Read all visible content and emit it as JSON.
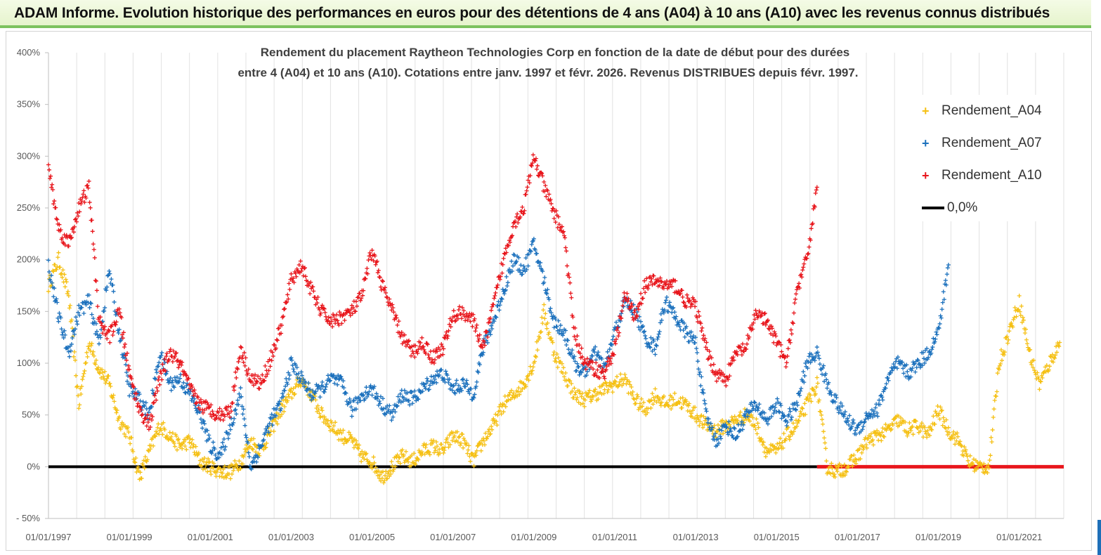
{
  "banner": {
    "title": "ADAM Informe. Evolution historique des performances en euros pour des détentions de 4 ans (A04) à 10 ans (A10) avec les revenus connus distribués"
  },
  "colors": {
    "A04": "#f5c014",
    "A07": "#1c71bd",
    "A10": "#e8161c",
    "zero": "#000000"
  },
  "chart_data": {
    "type": "scatter",
    "title_line1": "Rendement du placement Raytheon Technologies Corp en fonction de la date de début pour des durées",
    "title_line2": "entre 4 (A04) et 10 ans (A10). Cotations entre janv. 1997 et févr. 2026. Revenus DISTRIBUES depuis févr. 1997.",
    "ylim": [
      -50,
      400
    ],
    "yticks": [
      -50,
      0,
      50,
      100,
      150,
      200,
      250,
      300,
      350,
      400
    ],
    "ytick_labels": [
      "- 50%",
      "0%",
      "50%",
      "100%",
      "150%",
      "200%",
      "250%",
      "300%",
      "350%",
      "400%"
    ],
    "xlim": [
      1997.0,
      2022.1
    ],
    "xticks": [
      1997,
      1999,
      2001,
      2003,
      2005,
      2007,
      2009,
      2011,
      2013,
      2015,
      2017,
      2019,
      2021
    ],
    "xtick_labels": [
      "01/01/1997",
      "01/01/1999",
      "01/01/2001",
      "01/01/2003",
      "01/01/2005",
      "01/01/2007",
      "01/01/2009",
      "01/01/2011",
      "01/01/2013",
      "01/01/2015",
      "01/01/2017",
      "01/01/2019",
      "01/01/2021"
    ],
    "legend_position": "top-right",
    "series": [
      {
        "name": "Rendement_A04",
        "x": [
          1997.0,
          1997.25,
          1997.5,
          1997.75,
          1998.0,
          1998.25,
          1998.5,
          1998.75,
          1999.0,
          1999.25,
          1999.5,
          1999.75,
          2000.0,
          2000.25,
          2000.5,
          2000.75,
          2001.0,
          2001.25,
          2001.5,
          2001.75,
          2002.0,
          2002.25,
          2002.5,
          2002.75,
          2003.0,
          2003.25,
          2003.5,
          2003.75,
          2004.0,
          2004.25,
          2004.5,
          2004.75,
          2005.0,
          2005.25,
          2005.5,
          2005.75,
          2006.0,
          2006.25,
          2006.5,
          2006.75,
          2007.0,
          2007.25,
          2007.5,
          2007.75,
          2008.0,
          2008.25,
          2008.5,
          2008.75,
          2009.0,
          2009.25,
          2009.5,
          2009.75,
          2010.0,
          2010.25,
          2010.5,
          2010.75,
          2011.0,
          2011.25,
          2011.5,
          2011.75,
          2012.0,
          2012.25,
          2012.5,
          2012.75,
          2013.0,
          2013.25,
          2013.5,
          2013.75,
          2014.0,
          2014.25,
          2014.5,
          2014.75,
          2015.0,
          2015.25,
          2015.5,
          2015.75,
          2016.0,
          2016.25,
          2016.5,
          2016.75,
          2017.0,
          2017.25,
          2017.5,
          2017.75,
          2018.0,
          2018.25,
          2018.5,
          2018.75,
          2019.0,
          2019.25,
          2019.5,
          2019.75,
          2020.0,
          2020.25,
          2020.5,
          2020.75,
          2021.0,
          2021.25,
          2021.5,
          2021.75,
          2022.0
        ],
        "y": [
          175,
          200,
          165,
          60,
          120,
          95,
          80,
          45,
          30,
          -10,
          15,
          40,
          30,
          20,
          25,
          5,
          0,
          -5,
          -5,
          5,
          25,
          15,
          35,
          55,
          70,
          85,
          70,
          50,
          40,
          30,
          25,
          10,
          5,
          -10,
          0,
          10,
          5,
          15,
          20,
          15,
          30,
          25,
          5,
          25,
          40,
          60,
          70,
          80,
          100,
          150,
          110,
          90,
          70,
          65,
          70,
          75,
          80,
          85,
          65,
          55,
          70,
          60,
          65,
          60,
          50,
          40,
          35,
          40,
          45,
          50,
          40,
          15,
          15,
          30,
          40,
          60,
          80,
          0,
          -5,
          0,
          10,
          25,
          30,
          35,
          45,
          35,
          40,
          30,
          55,
          35,
          25,
          5,
          0,
          0,
          100,
          130,
          160,
          110,
          80,
          100,
          120
        ]
      },
      {
        "name": "Rendement_A07",
        "x": [
          1997.0,
          1997.25,
          1997.5,
          1997.75,
          1998.0,
          1998.25,
          1998.5,
          1998.75,
          1999.0,
          1999.25,
          1999.5,
          1999.75,
          2000.0,
          2000.25,
          2000.5,
          2000.75,
          2001.0,
          2001.25,
          2001.5,
          2001.75,
          2002.0,
          2002.25,
          2002.5,
          2002.75,
          2003.0,
          2003.25,
          2003.5,
          2003.75,
          2004.0,
          2004.25,
          2004.5,
          2004.75,
          2005.0,
          2005.25,
          2005.5,
          2005.75,
          2006.0,
          2006.25,
          2006.5,
          2006.75,
          2007.0,
          2007.25,
          2007.5,
          2007.75,
          2008.0,
          2008.25,
          2008.5,
          2008.75,
          2009.0,
          2009.25,
          2009.5,
          2009.75,
          2010.0,
          2010.25,
          2010.5,
          2010.75,
          2011.0,
          2011.25,
          2011.5,
          2011.75,
          2012.0,
          2012.25,
          2012.5,
          2012.75,
          2013.0,
          2013.25,
          2013.5,
          2013.75,
          2014.0,
          2014.25,
          2014.5,
          2014.75,
          2015.0,
          2015.25,
          2015.5,
          2015.75,
          2016.0,
          2016.25,
          2016.5,
          2016.75,
          2017.0,
          2017.25,
          2017.5,
          2017.75,
          2018.0,
          2018.25,
          2018.5,
          2018.75,
          2019.0,
          2019.25
        ],
        "y": [
          195,
          145,
          110,
          150,
          160,
          120,
          190,
          130,
          75,
          65,
          50,
          110,
          80,
          85,
          70,
          50,
          20,
          10,
          40,
          70,
          0,
          20,
          45,
          60,
          100,
          85,
          70,
          75,
          85,
          80,
          55,
          70,
          75,
          60,
          50,
          70,
          65,
          75,
          85,
          90,
          75,
          80,
          70,
          115,
          140,
          170,
          200,
          190,
          215,
          180,
          140,
          130,
          100,
          90,
          110,
          95,
          130,
          160,
          150,
          125,
          115,
          160,
          145,
          130,
          120,
          50,
          25,
          40,
          30,
          50,
          60,
          45,
          60,
          45,
          60,
          100,
          110,
          80,
          60,
          45,
          35,
          50,
          55,
          85,
          100,
          90,
          100,
          110,
          130,
          195
        ]
      },
      {
        "name": "Rendement_A10",
        "x": [
          1997.0,
          1997.25,
          1997.5,
          1997.75,
          1998.0,
          1998.25,
          1998.5,
          1998.75,
          1999.0,
          1999.25,
          1999.5,
          1999.75,
          2000.0,
          2000.25,
          2000.5,
          2000.75,
          2001.0,
          2001.25,
          2001.5,
          2001.75,
          2002.0,
          2002.25,
          2002.5,
          2002.75,
          2003.0,
          2003.25,
          2003.5,
          2003.75,
          2004.0,
          2004.25,
          2004.5,
          2004.75,
          2005.0,
          2005.25,
          2005.5,
          2005.75,
          2006.0,
          2006.25,
          2006.5,
          2006.75,
          2007.0,
          2007.25,
          2007.5,
          2007.75,
          2008.0,
          2008.25,
          2008.5,
          2008.75,
          2009.0,
          2009.25,
          2009.5,
          2009.75,
          2010.0,
          2010.25,
          2010.5,
          2010.75,
          2011.0,
          2011.25,
          2011.5,
          2011.75,
          2012.0,
          2012.25,
          2012.5,
          2012.75,
          2013.0,
          2013.25,
          2013.5,
          2013.75,
          2014.0,
          2014.25,
          2014.5,
          2014.75,
          2015.0,
          2015.25,
          2015.5,
          2015.75,
          2016.0
        ],
        "y": [
          290,
          230,
          215,
          250,
          270,
          140,
          125,
          150,
          90,
          55,
          40,
          85,
          110,
          100,
          75,
          60,
          55,
          50,
          55,
          115,
          85,
          80,
          105,
          135,
          180,
          195,
          170,
          150,
          140,
          145,
          150,
          165,
          210,
          175,
          150,
          125,
          110,
          120,
          105,
          115,
          145,
          150,
          140,
          115,
          155,
          200,
          235,
          250,
          300,
          270,
          245,
          225,
          130,
          100,
          95,
          90,
          115,
          165,
          145,
          175,
          180,
          175,
          175,
          160,
          155,
          115,
          90,
          85,
          110,
          115,
          150,
          140,
          120,
          100,
          170,
          200,
          270
        ]
      }
    ],
    "legend": [
      "Rendement_A04",
      "Rendement_A07",
      "Rendement_A10",
      "0,0%"
    ]
  }
}
